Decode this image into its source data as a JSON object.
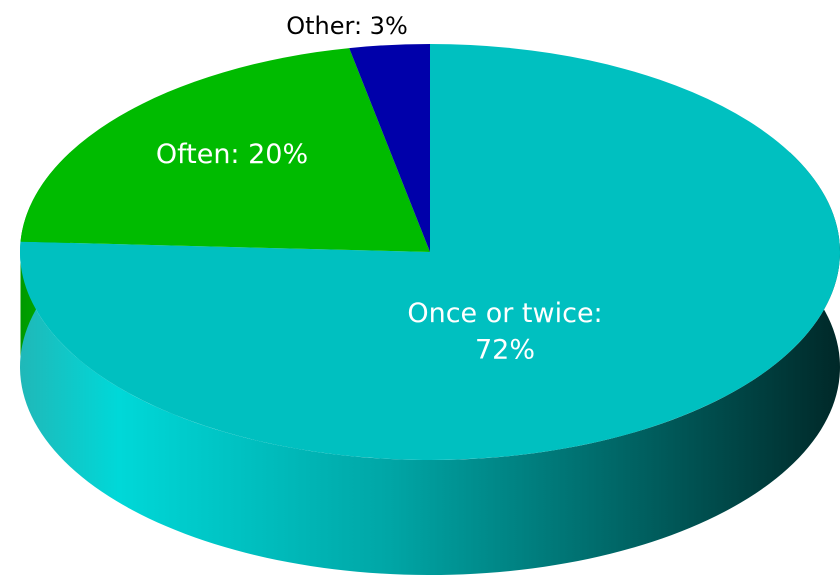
{
  "chart_data": {
    "type": "pie",
    "style": "3d-exploded-perspective",
    "title": "",
    "legend": "none",
    "slices": [
      {
        "name": "Once or twice",
        "value": 72,
        "label_lines": [
          "Once or twice:",
          "72%"
        ],
        "color": "#00C0C0",
        "label_color": "#ffffff"
      },
      {
        "name": "Often",
        "value": 20,
        "label_lines": [
          "Often: 20%"
        ],
        "color": "#00BB00",
        "label_color": "#ffffff"
      },
      {
        "name": "Other",
        "value": 3,
        "label_lines": [
          "Other: 3%"
        ],
        "color": "#0000AA",
        "label_color": "#000000"
      }
    ],
    "value_unit": "%"
  }
}
